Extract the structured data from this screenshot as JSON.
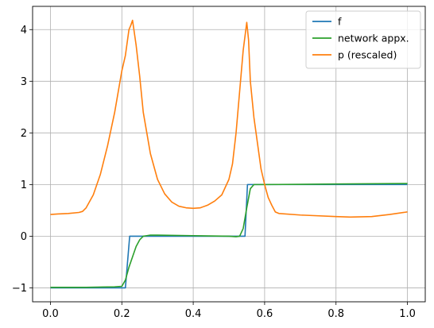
{
  "chart_data": {
    "type": "line",
    "title": "",
    "xlabel": "",
    "ylabel": "",
    "xlim": [
      -0.05,
      1.05
    ],
    "ylim": [
      -1.27,
      4.45
    ],
    "grid": true,
    "legend_position": "top-right",
    "x_ticks": [
      0.0,
      0.2,
      0.4,
      0.6,
      0.8,
      1.0
    ],
    "x_tick_labels": [
      "0.0",
      "0.2",
      "0.4",
      "0.6",
      "0.8",
      "1.0"
    ],
    "y_ticks": [
      -1,
      0,
      1,
      2,
      3,
      4
    ],
    "y_tick_labels": [
      "−1",
      "0",
      "1",
      "2",
      "3",
      "4"
    ],
    "series": [
      {
        "name": "f",
        "color": "#1f77b4",
        "x": [
          0.0,
          0.2,
          0.21,
          0.222,
          0.3,
          0.4,
          0.5,
          0.545,
          0.552,
          0.558,
          0.6,
          0.8,
          1.0
        ],
        "y": [
          -1.0,
          -1.0,
          -1.0,
          0.0,
          0.0,
          0.0,
          0.0,
          0.0,
          1.0,
          1.0,
          1.0,
          1.0,
          1.0
        ]
      },
      {
        "name": "network appx.",
        "color": "#2ca02c",
        "x": [
          0.0,
          0.1,
          0.18,
          0.2,
          0.21,
          0.22,
          0.23,
          0.24,
          0.25,
          0.26,
          0.27,
          0.28,
          0.3,
          0.4,
          0.5,
          0.52,
          0.53,
          0.54,
          0.55,
          0.56,
          0.57,
          0.6,
          0.8,
          1.0
        ],
        "y": [
          -0.99,
          -0.99,
          -0.98,
          -0.97,
          -0.85,
          -0.6,
          -0.4,
          -0.2,
          -0.07,
          0.0,
          0.01,
          0.02,
          0.02,
          0.01,
          0.0,
          -0.01,
          0.0,
          0.15,
          0.55,
          0.92,
          1.0,
          1.0,
          1.01,
          1.02
        ]
      },
      {
        "name": "p (rescaled)",
        "color": "#ff7f0e",
        "x": [
          0.0,
          0.02,
          0.05,
          0.08,
          0.09,
          0.1,
          0.12,
          0.14,
          0.16,
          0.18,
          0.2,
          0.21,
          0.22,
          0.225,
          0.23,
          0.24,
          0.25,
          0.26,
          0.28,
          0.3,
          0.32,
          0.34,
          0.36,
          0.38,
          0.4,
          0.42,
          0.44,
          0.46,
          0.48,
          0.5,
          0.51,
          0.52,
          0.53,
          0.54,
          0.55,
          0.555,
          0.56,
          0.57,
          0.58,
          0.59,
          0.6,
          0.61,
          0.62,
          0.63,
          0.64,
          0.7,
          0.8,
          0.84,
          0.9,
          0.95,
          1.0
        ],
        "y": [
          0.42,
          0.43,
          0.44,
          0.46,
          0.48,
          0.55,
          0.8,
          1.2,
          1.75,
          2.4,
          3.2,
          3.5,
          4.0,
          4.08,
          4.18,
          3.7,
          3.1,
          2.4,
          1.6,
          1.1,
          0.82,
          0.66,
          0.58,
          0.55,
          0.54,
          0.55,
          0.6,
          0.68,
          0.8,
          1.1,
          1.4,
          2.0,
          2.8,
          3.6,
          4.14,
          3.8,
          3.0,
          2.3,
          1.8,
          1.3,
          1.0,
          0.75,
          0.6,
          0.47,
          0.44,
          0.41,
          0.38,
          0.37,
          0.38,
          0.42,
          0.47
        ]
      }
    ]
  }
}
